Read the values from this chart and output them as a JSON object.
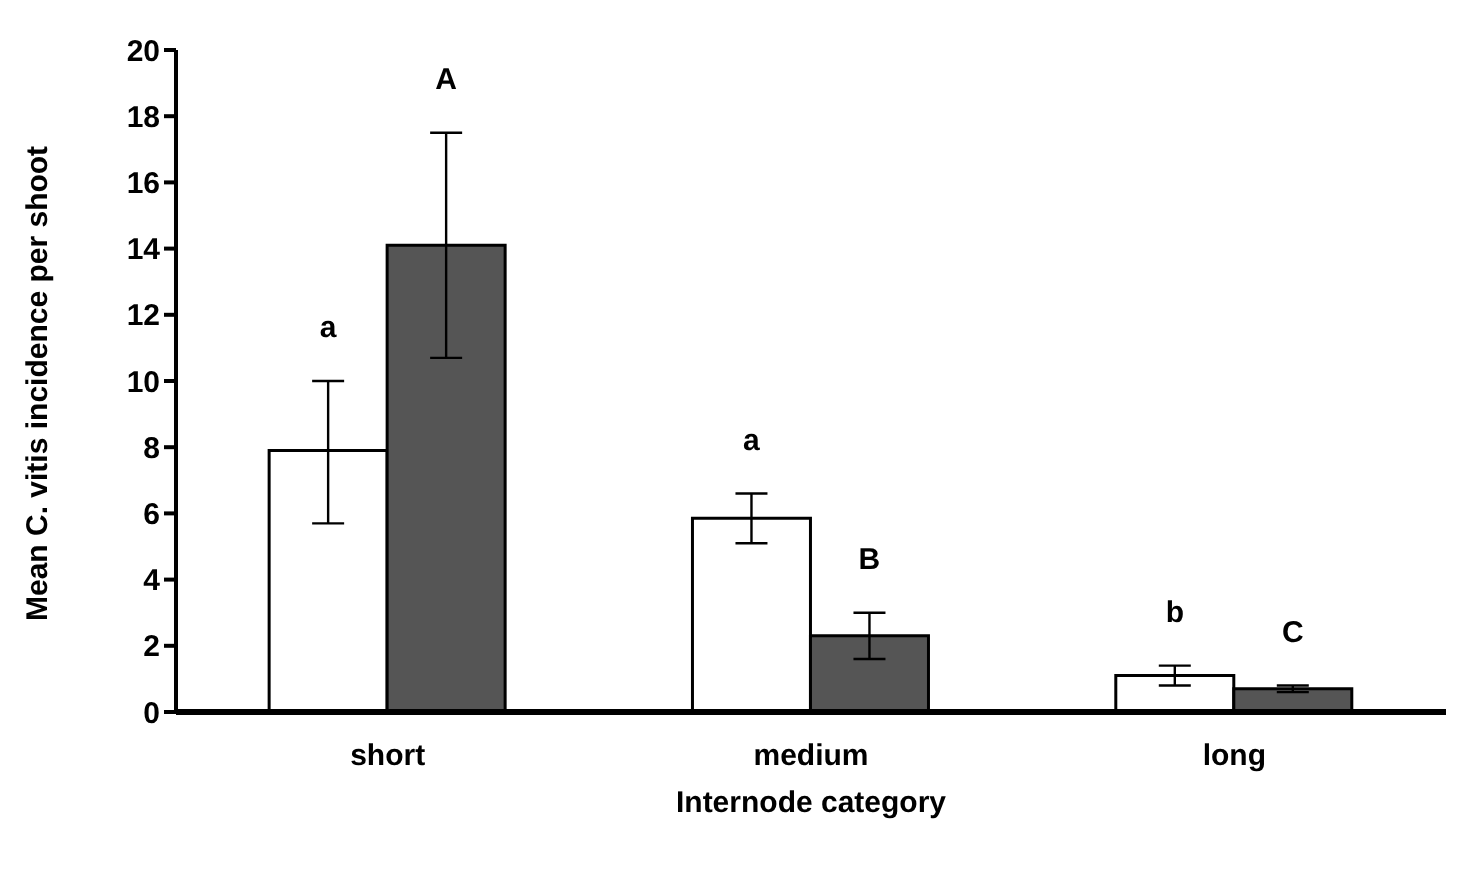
{
  "chart_data": {
    "type": "bar",
    "xlabel": "Internode category",
    "ylabel": "Mean C. vitis incidence per shoot",
    "categories": [
      "short",
      "medium",
      "long"
    ],
    "series": [
      {
        "color": "#ffffff",
        "values": [
          7.9,
          5.85,
          1.1
        ],
        "errors": [
          [
            5.7,
            10.0
          ],
          [
            5.1,
            6.6
          ],
          [
            0.8,
            1.4
          ]
        ]
      },
      {
        "color": "#555555",
        "values": [
          14.1,
          2.3,
          0.7
        ],
        "errors": [
          [
            10.7,
            17.5
          ],
          [
            1.6,
            3.0
          ],
          [
            0.6,
            0.8
          ]
        ]
      }
    ],
    "ylim": [
      0,
      20
    ],
    "yticks": [
      0,
      2,
      4,
      6,
      8,
      10,
      12,
      14,
      16,
      18,
      20
    ],
    "grid": false,
    "legend": false,
    "annotations": [
      "a",
      "A",
      "a",
      "B",
      "b",
      "C"
    ]
  }
}
